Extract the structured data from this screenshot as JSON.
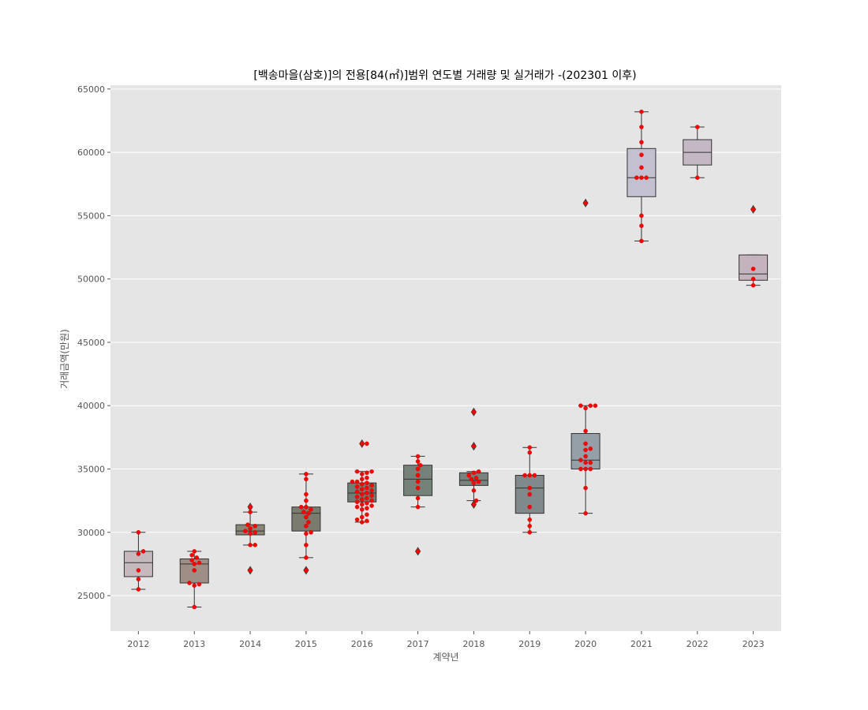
{
  "chart_data": {
    "type": "box",
    "title": "[백송마을(삼호)]의 전용[84(㎡)]범위 연도별 거래량 및 실거래가 -(202301 이후)",
    "xlabel": "계약년",
    "ylabel": "거래금액(만원)",
    "ylim": [
      22200,
      65300
    ],
    "yticks": [
      25000,
      30000,
      35000,
      40000,
      45000,
      50000,
      55000,
      60000,
      65000
    ],
    "grid": true,
    "categories": [
      "2012",
      "2013",
      "2014",
      "2015",
      "2016",
      "2017",
      "2018",
      "2019",
      "2020",
      "2021",
      "2022",
      "2023"
    ],
    "boxes": [
      {
        "year": "2012",
        "q1": 26500,
        "median": 27600,
        "q3": 28500,
        "whisker_low": 25500,
        "whisker_high": 30000,
        "outliers": [],
        "color": "#c5b9bd"
      },
      {
        "year": "2013",
        "q1": 26000,
        "median": 27500,
        "q3": 27900,
        "whisker_low": 24100,
        "whisker_high": 28500,
        "outliers": [],
        "color": "#9e8e86"
      },
      {
        "year": "2014",
        "q1": 29800,
        "median": 30100,
        "q3": 30600,
        "whisker_low": 29000,
        "whisker_high": 31600,
        "outliers": [
          32000,
          27000
        ],
        "color": "#8b8577"
      },
      {
        "year": "2015",
        "q1": 30100,
        "median": 31500,
        "q3": 32000,
        "whisker_low": 28000,
        "whisker_high": 34600,
        "outliers": [
          27000
        ],
        "color": "#7b7b70"
      },
      {
        "year": "2016",
        "q1": 32400,
        "median": 33100,
        "q3": 33900,
        "whisker_low": 30800,
        "whisker_high": 34800,
        "outliers": [
          37000
        ],
        "color": "#6f7e74"
      },
      {
        "year": "2017",
        "q1": 32900,
        "median": 34200,
        "q3": 35300,
        "whisker_low": 32000,
        "whisker_high": 36000,
        "outliers": [
          28500
        ],
        "color": "#768179"
      },
      {
        "year": "2018",
        "q1": 33700,
        "median": 34100,
        "q3": 34700,
        "whisker_low": 32500,
        "whisker_high": 34800,
        "outliers": [
          39500,
          36800,
          32200
        ],
        "color": "#7a827e"
      },
      {
        "year": "2019",
        "q1": 31500,
        "median": 33500,
        "q3": 34500,
        "whisker_low": 30000,
        "whisker_high": 36700,
        "outliers": [],
        "color": "#808a8b"
      },
      {
        "year": "2020",
        "q1": 35000,
        "median": 35700,
        "q3": 37800,
        "whisker_low": 31500,
        "whisker_high": 40000,
        "outliers": [
          56000
        ],
        "color": "#959fa8"
      },
      {
        "year": "2021",
        "q1": 56500,
        "median": 58000,
        "q3": 60300,
        "whisker_low": 53000,
        "whisker_high": 63200,
        "outliers": [],
        "color": "#c3c1cf"
      },
      {
        "year": "2022",
        "q1": 59000,
        "median": 60000,
        "q3": 61000,
        "whisker_low": 58000,
        "whisker_high": 62000,
        "outliers": [],
        "color": "#c5b8c5"
      },
      {
        "year": "2023",
        "q1": 49900,
        "median": 50400,
        "q3": 51900,
        "whisker_low": 49500,
        "whisker_high": 51900,
        "outliers": [
          55500
        ],
        "color": "#c2b3bc"
      }
    ],
    "swarm_points": {
      "2012": [
        30000,
        28500,
        28300,
        27000,
        26300,
        25500
      ],
      "2013": [
        28500,
        28200,
        28000,
        27800,
        27600,
        27500,
        27000,
        26000,
        25900,
        25800,
        24100
      ],
      "2014": [
        32000,
        31600,
        30600,
        30500,
        30300,
        30100,
        30000,
        29900,
        29000,
        29000,
        27000
      ],
      "2015": [
        34600,
        34200,
        33000,
        32500,
        32000,
        32000,
        31800,
        31600,
        31500,
        31200,
        30800,
        30500,
        30000,
        29900,
        29000,
        28000,
        27000
      ],
      "2016": [
        37000,
        37000,
        34800,
        34800,
        34700,
        34600,
        34300,
        34200,
        34000,
        34000,
        33900,
        33800,
        33700,
        33600,
        33500,
        33400,
        33300,
        33200,
        33100,
        33000,
        32900,
        32800,
        32700,
        32600,
        32500,
        32400,
        32300,
        32200,
        32100,
        32000,
        31900,
        31800,
        31400,
        31200,
        31000,
        30900,
        30800
      ],
      "2017": [
        36000,
        35600,
        35300,
        35000,
        34500,
        34000,
        33500,
        32700,
        32000,
        28500
      ],
      "2018": [
        39500,
        36800,
        34800,
        34700,
        34500,
        34300,
        34200,
        34000,
        33900,
        33300,
        32500,
        32200
      ],
      "2019": [
        36700,
        36300,
        34500,
        34500,
        34500,
        33500,
        33000,
        32000,
        31000,
        30500,
        30000
      ],
      "2020": [
        56000,
        40000,
        40000,
        40000,
        39800,
        38000,
        37000,
        36600,
        36500,
        36000,
        35700,
        35500,
        35500,
        35000,
        35000,
        35000,
        33500,
        31500
      ],
      "2021": [
        63200,
        62000,
        60800,
        59800,
        58800,
        58000,
        58000,
        58000,
        55000,
        54200,
        53000
      ],
      "2022": [
        62000,
        58000
      ],
      "2023": [
        55500,
        50800,
        50000,
        49500
      ]
    },
    "point_color": "#ff0000",
    "median_color": "#333333"
  }
}
